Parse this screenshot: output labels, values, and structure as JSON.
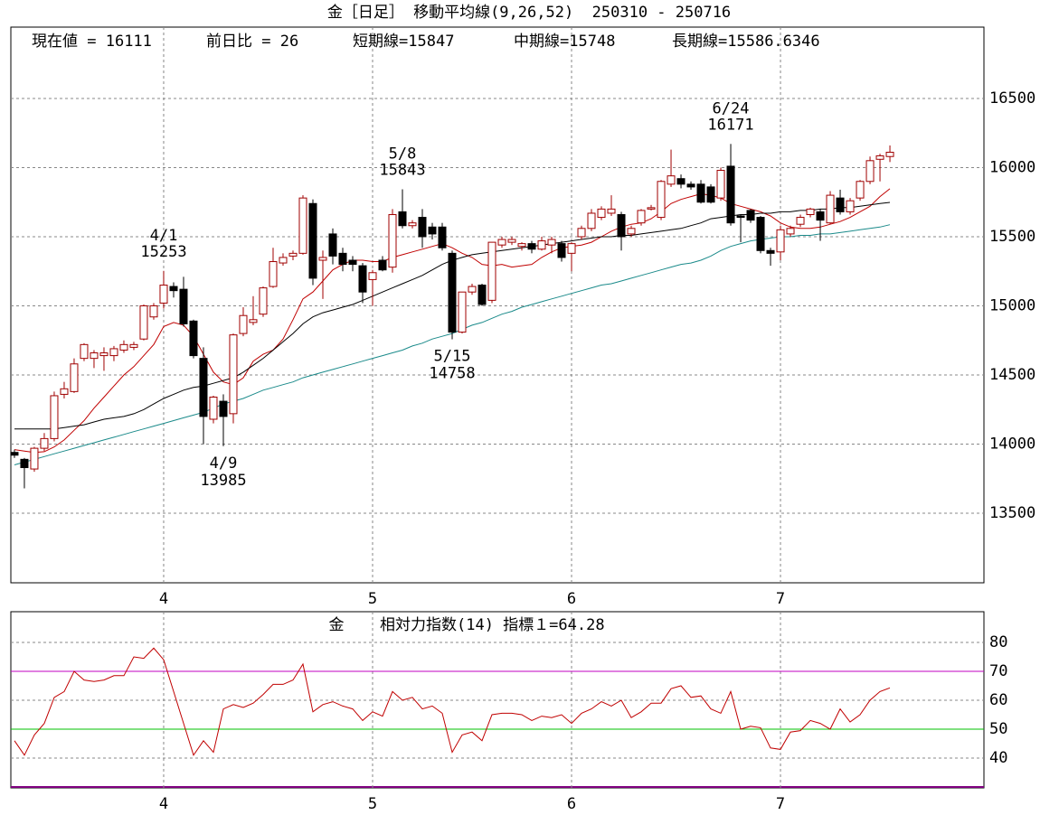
{
  "chart_data": [
    {
      "type": "candlestick",
      "title": "金［日足］ 移動平均線(9,26,52)  250310 - 250716",
      "stats": [
        {
          "label": "現在値 = ",
          "value": 16111
        },
        {
          "label": "前日比 = ",
          "value": 26
        },
        {
          "label": "短期線=",
          "value": 15847
        },
        {
          "label": "中期線=",
          "value": 15748
        },
        {
          "label": "長期線=",
          "value": 15586.6346
        }
      ],
      "open": [
        13940,
        13890,
        13820,
        13970,
        14040,
        14360,
        14380,
        14620,
        14620,
        14640,
        14640,
        14680,
        14700,
        14760,
        14920,
        15020,
        15140,
        15120,
        14890,
        14620,
        14180,
        14310,
        14220,
        14800,
        14880,
        14940,
        15140,
        15310,
        15360,
        15380,
        15740,
        15330,
        15520,
        15380,
        15330,
        15290,
        15190,
        15330,
        15280,
        15680,
        15580,
        15640,
        15570,
        15570,
        15380,
        14810,
        15100,
        15150,
        15040,
        15440,
        15460,
        15430,
        15450,
        15410,
        15440,
        15450,
        15380,
        15500,
        15560,
        15640,
        15670,
        15660,
        15520,
        15600,
        15700,
        15640,
        15880,
        15920,
        15880,
        15880,
        15860,
        15780,
        16010,
        15650,
        15690,
        15640,
        15400,
        15390,
        15520,
        15590,
        15660,
        15680,
        15600,
        15780,
        15680,
        15780,
        15900,
        16060,
        16080
      ],
      "high": [
        13960,
        13900,
        13980,
        14080,
        14380,
        14450,
        14620,
        14730,
        14680,
        14700,
        14710,
        14750,
        14740,
        15010,
        15020,
        15253,
        15170,
        15210,
        14900,
        14700,
        14350,
        14360,
        14800,
        14990,
        15070,
        15140,
        15420,
        15380,
        15400,
        15800,
        15770,
        15400,
        15560,
        15420,
        15360,
        15310,
        15260,
        15360,
        15700,
        15843,
        15620,
        15700,
        15600,
        15600,
        15400,
        15100,
        15160,
        15160,
        15460,
        15500,
        15500,
        15460,
        15470,
        15500,
        15500,
        15470,
        15460,
        15580,
        15700,
        15720,
        15800,
        15680,
        15580,
        15700,
        15730,
        15910,
        16130,
        15950,
        15900,
        15910,
        15880,
        16000,
        16171,
        15660,
        15700,
        15650,
        15420,
        15580,
        15580,
        15660,
        15710,
        15700,
        15830,
        15840,
        15780,
        15910,
        16080,
        16100,
        16160
      ],
      "low": [
        13900,
        13680,
        13800,
        13950,
        14020,
        14330,
        14370,
        14600,
        14550,
        14530,
        14600,
        14660,
        14680,
        14750,
        14900,
        14980,
        15060,
        14850,
        14620,
        14000,
        14150,
        13985,
        14150,
        14780,
        14860,
        14920,
        15130,
        15290,
        15330,
        15370,
        15150,
        15050,
        15300,
        15250,
        15250,
        15020,
        15000,
        15250,
        15240,
        15560,
        15560,
        15420,
        15480,
        15400,
        14758,
        14800,
        15080,
        15000,
        15020,
        15420,
        15440,
        15400,
        15380,
        15400,
        15380,
        15320,
        15250,
        15480,
        15540,
        15620,
        15650,
        15400,
        15500,
        15580,
        15690,
        15620,
        15860,
        15850,
        15840,
        15740,
        15740,
        15760,
        15580,
        15460,
        15600,
        15380,
        15290,
        15330,
        15500,
        15570,
        15640,
        15470,
        15590,
        15660,
        15660,
        15760,
        15880,
        15900,
        16040
      ],
      "close": [
        13920,
        13830,
        13970,
        14040,
        14350,
        14400,
        14580,
        14720,
        14660,
        14660,
        14690,
        14720,
        14720,
        15000,
        15000,
        15150,
        15110,
        14870,
        14640,
        14200,
        14340,
        14200,
        14790,
        14930,
        14900,
        15130,
        15320,
        15350,
        15380,
        15780,
        15200,
        15350,
        15360,
        15300,
        15300,
        15100,
        15240,
        15260,
        15660,
        15580,
        15600,
        15500,
        15520,
        15420,
        14810,
        15100,
        15140,
        15010,
        15460,
        15480,
        15480,
        15450,
        15410,
        15470,
        15480,
        15350,
        15450,
        15560,
        15670,
        15700,
        15700,
        15500,
        15560,
        15690,
        15710,
        15900,
        15940,
        15880,
        15860,
        15750,
        15750,
        15980,
        15600,
        15640,
        15620,
        15400,
        15380,
        15550,
        15560,
        15640,
        15700,
        15620,
        15800,
        15680,
        15760,
        15900,
        16050,
        16085,
        16111
      ],
      "up_color": "#a00000",
      "down_color": "#000000",
      "moving_averages": [
        {
          "color": "#c00000",
          "values": [
            13960,
            13950,
            13940,
            13945,
            13980,
            14030,
            14100,
            14170,
            14260,
            14340,
            14420,
            14500,
            14560,
            14640,
            14720,
            14850,
            14880,
            14860,
            14780,
            14650,
            14520,
            14450,
            14430,
            14480,
            14600,
            14650,
            14680,
            14760,
            14900,
            15050,
            15100,
            15180,
            15260,
            15300,
            15330,
            15330,
            15320,
            15320,
            15350,
            15370,
            15390,
            15410,
            15430,
            15450,
            15420,
            15380,
            15350,
            15300,
            15290,
            15300,
            15280,
            15290,
            15300,
            15350,
            15390,
            15420,
            15430,
            15440,
            15460,
            15500,
            15540,
            15570,
            15590,
            15600,
            15630,
            15680,
            15740,
            15770,
            15790,
            15810,
            15800,
            15780,
            15740,
            15720,
            15700,
            15680,
            15650,
            15600,
            15570,
            15560,
            15560,
            15570,
            15590,
            15610,
            15640,
            15680,
            15720,
            15790,
            15847
          ]
        },
        {
          "color": "#000000",
          "values": [
            14110,
            14110,
            14110,
            14110,
            14110,
            14120,
            14130,
            14140,
            14160,
            14180,
            14190,
            14200,
            14220,
            14250,
            14290,
            14330,
            14360,
            14390,
            14410,
            14420,
            14440,
            14460,
            14480,
            14520,
            14570,
            14620,
            14680,
            14740,
            14800,
            14870,
            14920,
            14950,
            14970,
            14990,
            15010,
            15040,
            15070,
            15100,
            15130,
            15160,
            15190,
            15220,
            15260,
            15300,
            15330,
            15350,
            15370,
            15380,
            15390,
            15400,
            15410,
            15420,
            15430,
            15440,
            15450,
            15460,
            15470,
            15480,
            15490,
            15500,
            15500,
            15510,
            15510,
            15520,
            15530,
            15540,
            15550,
            15560,
            15580,
            15600,
            15630,
            15640,
            15650,
            15660,
            15660,
            15670,
            15670,
            15680,
            15680,
            15690,
            15690,
            15700,
            15700,
            15710,
            15710,
            15720,
            15730,
            15740,
            15748
          ]
        },
        {
          "color": "#1a8a8a",
          "values": [
            13850,
            13870,
            13890,
            13910,
            13930,
            13950,
            13970,
            13990,
            14010,
            14030,
            14050,
            14070,
            14090,
            14110,
            14130,
            14150,
            14170,
            14190,
            14210,
            14230,
            14260,
            14290,
            14310,
            14330,
            14360,
            14390,
            14410,
            14430,
            14450,
            14480,
            14500,
            14520,
            14540,
            14560,
            14580,
            14600,
            14620,
            14640,
            14660,
            14680,
            14710,
            14730,
            14760,
            14780,
            14800,
            14830,
            14860,
            14880,
            14910,
            14940,
            14960,
            14990,
            15010,
            15030,
            15050,
            15070,
            15090,
            15110,
            15130,
            15150,
            15160,
            15180,
            15200,
            15220,
            15240,
            15260,
            15280,
            15300,
            15310,
            15330,
            15360,
            15400,
            15430,
            15450,
            15470,
            15480,
            15490,
            15500,
            15500,
            15510,
            15510,
            15520,
            15520,
            15530,
            15540,
            15550,
            15560,
            15570,
            15586.6346
          ]
        }
      ],
      "annotations": [
        {
          "label": "4/1",
          "value": 15253
        },
        {
          "label": "4/9",
          "value": 13985
        },
        {
          "label": "5/8",
          "value": 15843
        },
        {
          "label": "5/15",
          "value": 14758
        },
        {
          "label": "6/24",
          "value": 16171
        }
      ],
      "xlim": [
        -0.36,
        97.45
      ],
      "xticks": [
        {
          "value": 15,
          "label": "4"
        },
        {
          "value": 36,
          "label": "5"
        },
        {
          "value": 56,
          "label": "6"
        },
        {
          "value": 77,
          "label": "7"
        }
      ],
      "ylim": [
        12997,
        17016
      ],
      "yticks": [
        13500,
        14000,
        14500,
        15000,
        15500,
        16000,
        16500
      ],
      "grid": true
    },
    {
      "type": "line",
      "title": "金",
      "indicator_label": "相対力指数(14) 指標１=",
      "indicator_value": 64.28,
      "color": "#c00000",
      "values": [
        46,
        41,
        48,
        52,
        61,
        63,
        70,
        67,
        66.5,
        67,
        68.5,
        68.5,
        75,
        74.5,
        78,
        74,
        63,
        52,
        41,
        46,
        42,
        57,
        58.5,
        57.5,
        59,
        62,
        65.5,
        65.5,
        67,
        72.5,
        56,
        58.5,
        59.5,
        58,
        57,
        53,
        56,
        54.5,
        63,
        60,
        61,
        57,
        58,
        55.5,
        42,
        48,
        49,
        46,
        55,
        55.5,
        55.5,
        55,
        53,
        54.5,
        54,
        55,
        52,
        55.5,
        57,
        59.5,
        58,
        60,
        54,
        56,
        59,
        59,
        64,
        65,
        61,
        61.5,
        57,
        55.5,
        63,
        50,
        51,
        50.5,
        43.5,
        43,
        49,
        49.5,
        53,
        52,
        50,
        57,
        52.5,
        55,
        60,
        63,
        64.28
      ],
      "ref_lines": [
        {
          "value": 70,
          "color": "#c000c0"
        },
        {
          "value": 50,
          "color": "#00c000"
        }
      ],
      "xlim": [
        -0.36,
        97.45
      ],
      "xticks": [
        {
          "value": 15,
          "label": "4"
        },
        {
          "value": 36,
          "label": "5"
        },
        {
          "value": 56,
          "label": "6"
        },
        {
          "value": 77,
          "label": "7"
        }
      ],
      "ylim": [
        29.7,
        90.6
      ],
      "yticks": [
        40,
        50,
        60,
        70,
        80
      ],
      "grid": true
    }
  ]
}
